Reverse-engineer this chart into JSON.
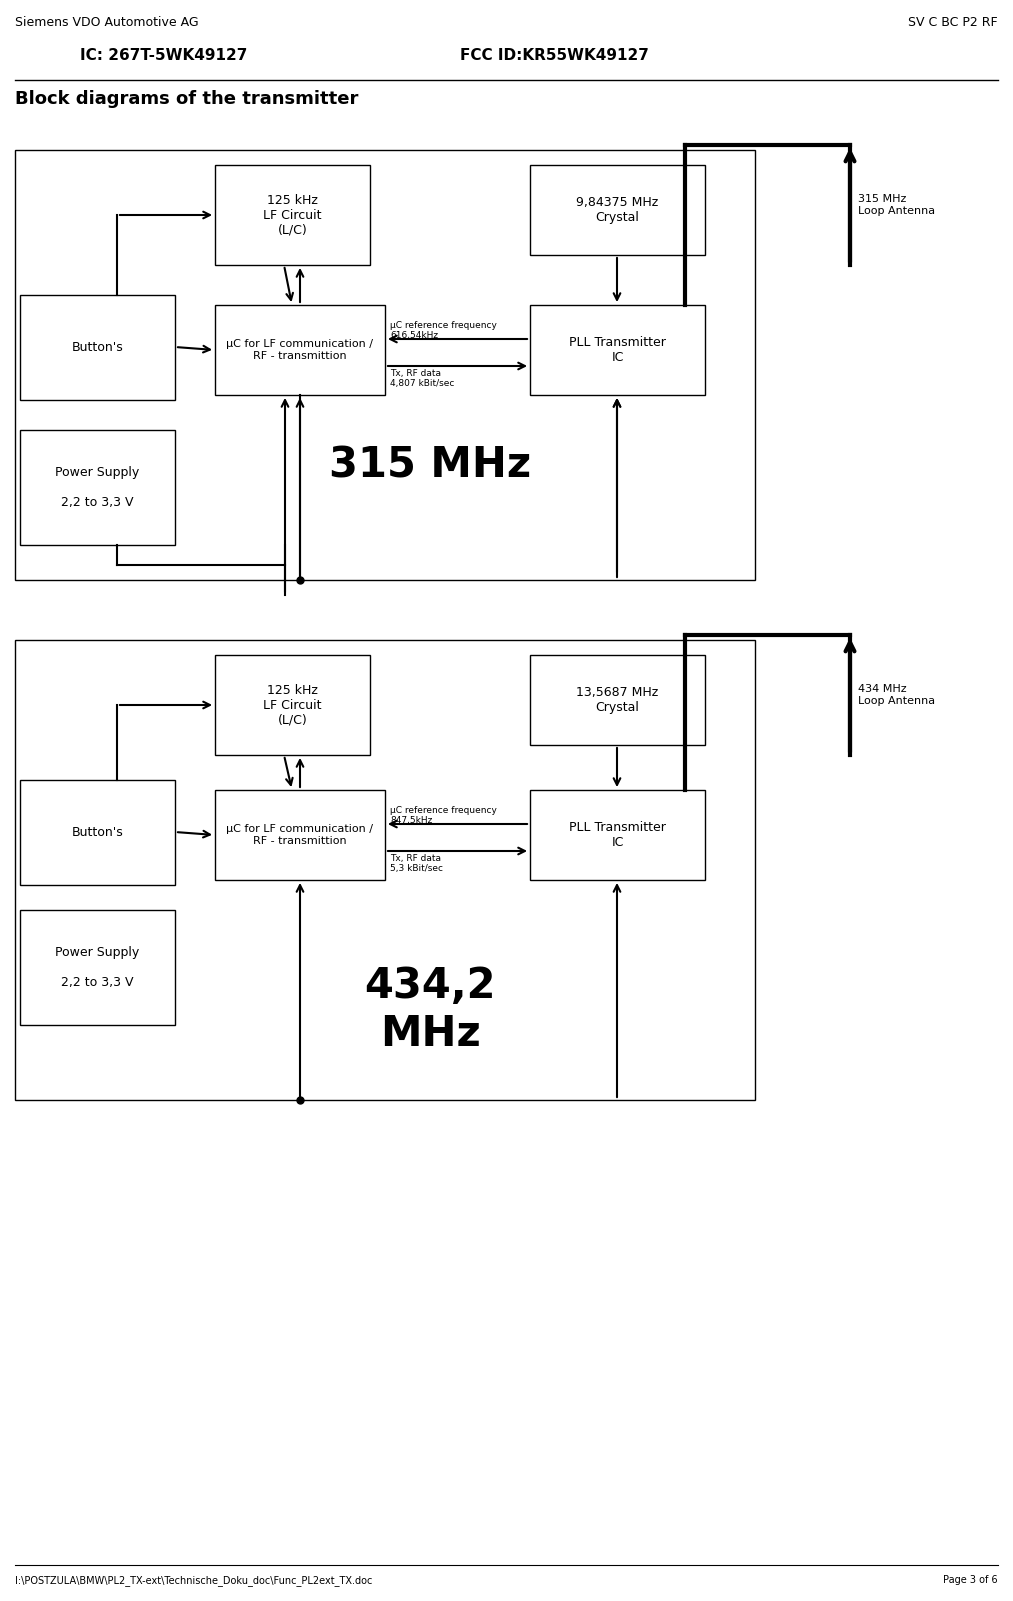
{
  "header_left": "Siemens VDO Automotive AG",
  "header_right": "SV C BC P2 RF",
  "subheader_left": "IC: 267T-5WK49127",
  "subheader_right": "FCC ID:KR55WK49127",
  "title": "Block diagrams of the transmitter",
  "footer_left": "I:\\POSTZULA\\BMW\\PL2_TX-ext\\Technische_Doku_doc\\Func_PL2ext_TX.doc",
  "footer_right": "Page 3 of 6",
  "diagram1": {
    "freq_label": "315 MHz",
    "crystal_text": "9,84375 MHz\nCrystal",
    "lf_circuit_text": "125 kHz\nLF Circuit\n(L/C)",
    "uc_text": "μC for LF communication /\nRF - transmittion",
    "pll_text": "PLL Transmitter\nIC",
    "button_text": "Button's",
    "power_text": "Power Supply\n\n2,2 to 3,3 V",
    "antenna_text": "315 MHz\nLoop Antenna",
    "ref_freq_text": "μC reference frequency\n616,54kHz",
    "tx_data_text": "Tx, RF data\n4,807 kBit/sec"
  },
  "diagram2": {
    "freq_label": "434,2\nMHz",
    "crystal_text": "13,5687 MHz\nCrystal",
    "lf_circuit_text": "125 kHz\nLF Circuit\n(L/C)",
    "uc_text": "μC for LF communication /\nRF - transmittion",
    "pll_text": "PLL Transmitter\nIC",
    "button_text": "Button's",
    "power_text": "Power Supply\n\n2,2 to 3,3 V",
    "antenna_text": "434 MHz\nLoop Antenna",
    "ref_freq_text": "μC reference frequency\n847,5kHz",
    "tx_data_text": "Tx, RF data\n5,3 kBit/sec"
  },
  "bg_color": "#ffffff",
  "box_color": "#ffffff",
  "box_edge_color": "#000000",
  "text_color": "#000000",
  "line_color": "#000000"
}
